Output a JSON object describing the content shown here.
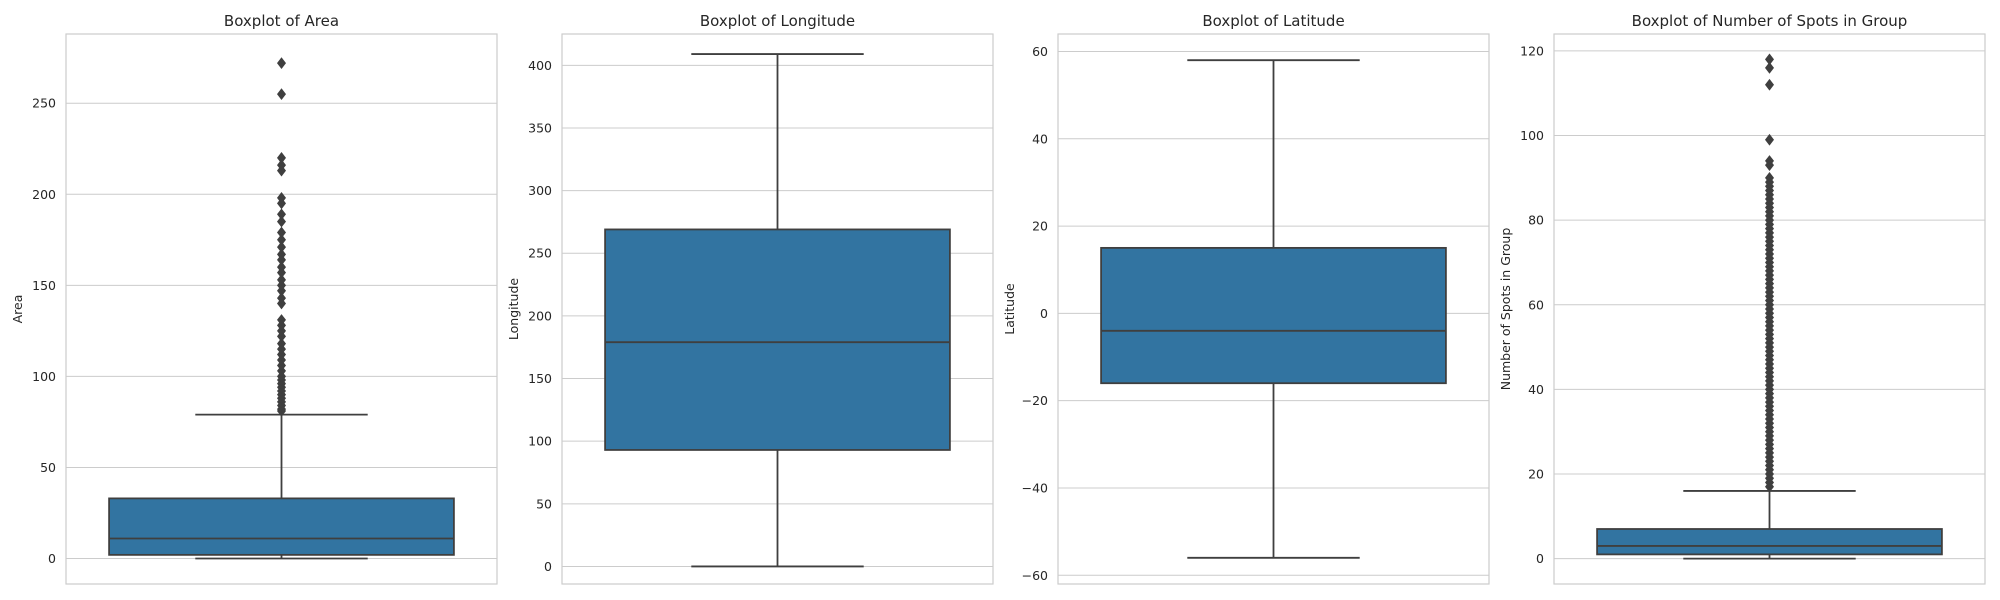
{
  "chart_data": [
    {
      "type": "box",
      "title": "Boxplot of Area",
      "ylabel": "Area",
      "ylim": [
        -14,
        288
      ],
      "yticks": [
        0,
        50,
        100,
        150,
        200,
        250
      ],
      "ytick_labels": [
        "0",
        "50",
        "100",
        "150",
        "200",
        "250"
      ],
      "grid": true,
      "stats": {
        "min": 0,
        "q1": 2,
        "median": 11,
        "q3": 33,
        "max": 79
      },
      "fliers": [
        81,
        82,
        84,
        86,
        88,
        90,
        92,
        94,
        96,
        98,
        100,
        103,
        106,
        109,
        112,
        115,
        118,
        122,
        125,
        128,
        131,
        140,
        143,
        147,
        150,
        153,
        157,
        160,
        164,
        167,
        171,
        175,
        179,
        185,
        189,
        195,
        198,
        213,
        216,
        220,
        255,
        272
      ]
    },
    {
      "type": "box",
      "title": "Boxplot of Longitude",
      "ylabel": "Longitude",
      "ylim": [
        -14,
        425
      ],
      "yticks": [
        0,
        50,
        100,
        150,
        200,
        250,
        300,
        350,
        400
      ],
      "ytick_labels": [
        "0",
        "50",
        "100",
        "150",
        "200",
        "250",
        "300",
        "350",
        "400"
      ],
      "grid": true,
      "stats": {
        "min": 0,
        "q1": 93,
        "median": 179,
        "q3": 269,
        "max": 409
      },
      "fliers": []
    },
    {
      "type": "box",
      "title": "Boxplot of Latitude",
      "ylabel": "Latitude",
      "ylim": [
        -62,
        64
      ],
      "yticks": [
        -60,
        -40,
        -20,
        0,
        20,
        40,
        60
      ],
      "ytick_labels": [
        "−60",
        "−40",
        "−20",
        "0",
        "20",
        "40",
        "60"
      ],
      "grid": true,
      "stats": {
        "min": -56,
        "q1": -16,
        "median": -4,
        "q3": 15,
        "max": 58
      },
      "fliers": []
    },
    {
      "type": "box",
      "title": "Boxplot of Number of Spots in Group",
      "ylabel": "Number of Spots in Group",
      "ylim": [
        -6,
        124
      ],
      "yticks": [
        0,
        20,
        40,
        60,
        80,
        100,
        120
      ],
      "ytick_labels": [
        "0",
        "20",
        "40",
        "60",
        "80",
        "100",
        "120"
      ],
      "grid": true,
      "stats": {
        "min": 0,
        "q1": 1,
        "median": 3,
        "q3": 7,
        "max": 16
      },
      "fliers": [
        17,
        18,
        19,
        20,
        21,
        22,
        23,
        24,
        25,
        26,
        27,
        28,
        29,
        30,
        31,
        32,
        33,
        34,
        35,
        36,
        37,
        38,
        39,
        40,
        41,
        42,
        43,
        44,
        45,
        46,
        47,
        48,
        49,
        50,
        51,
        52,
        53,
        54,
        55,
        56,
        57,
        58,
        59,
        60,
        61,
        62,
        63,
        64,
        65,
        66,
        67,
        68,
        69,
        70,
        71,
        72,
        73,
        74,
        75,
        76,
        77,
        78,
        79,
        80,
        81,
        82,
        83,
        84,
        85,
        86,
        87,
        88,
        89,
        90,
        93,
        94,
        99,
        112,
        116,
        118
      ]
    }
  ]
}
